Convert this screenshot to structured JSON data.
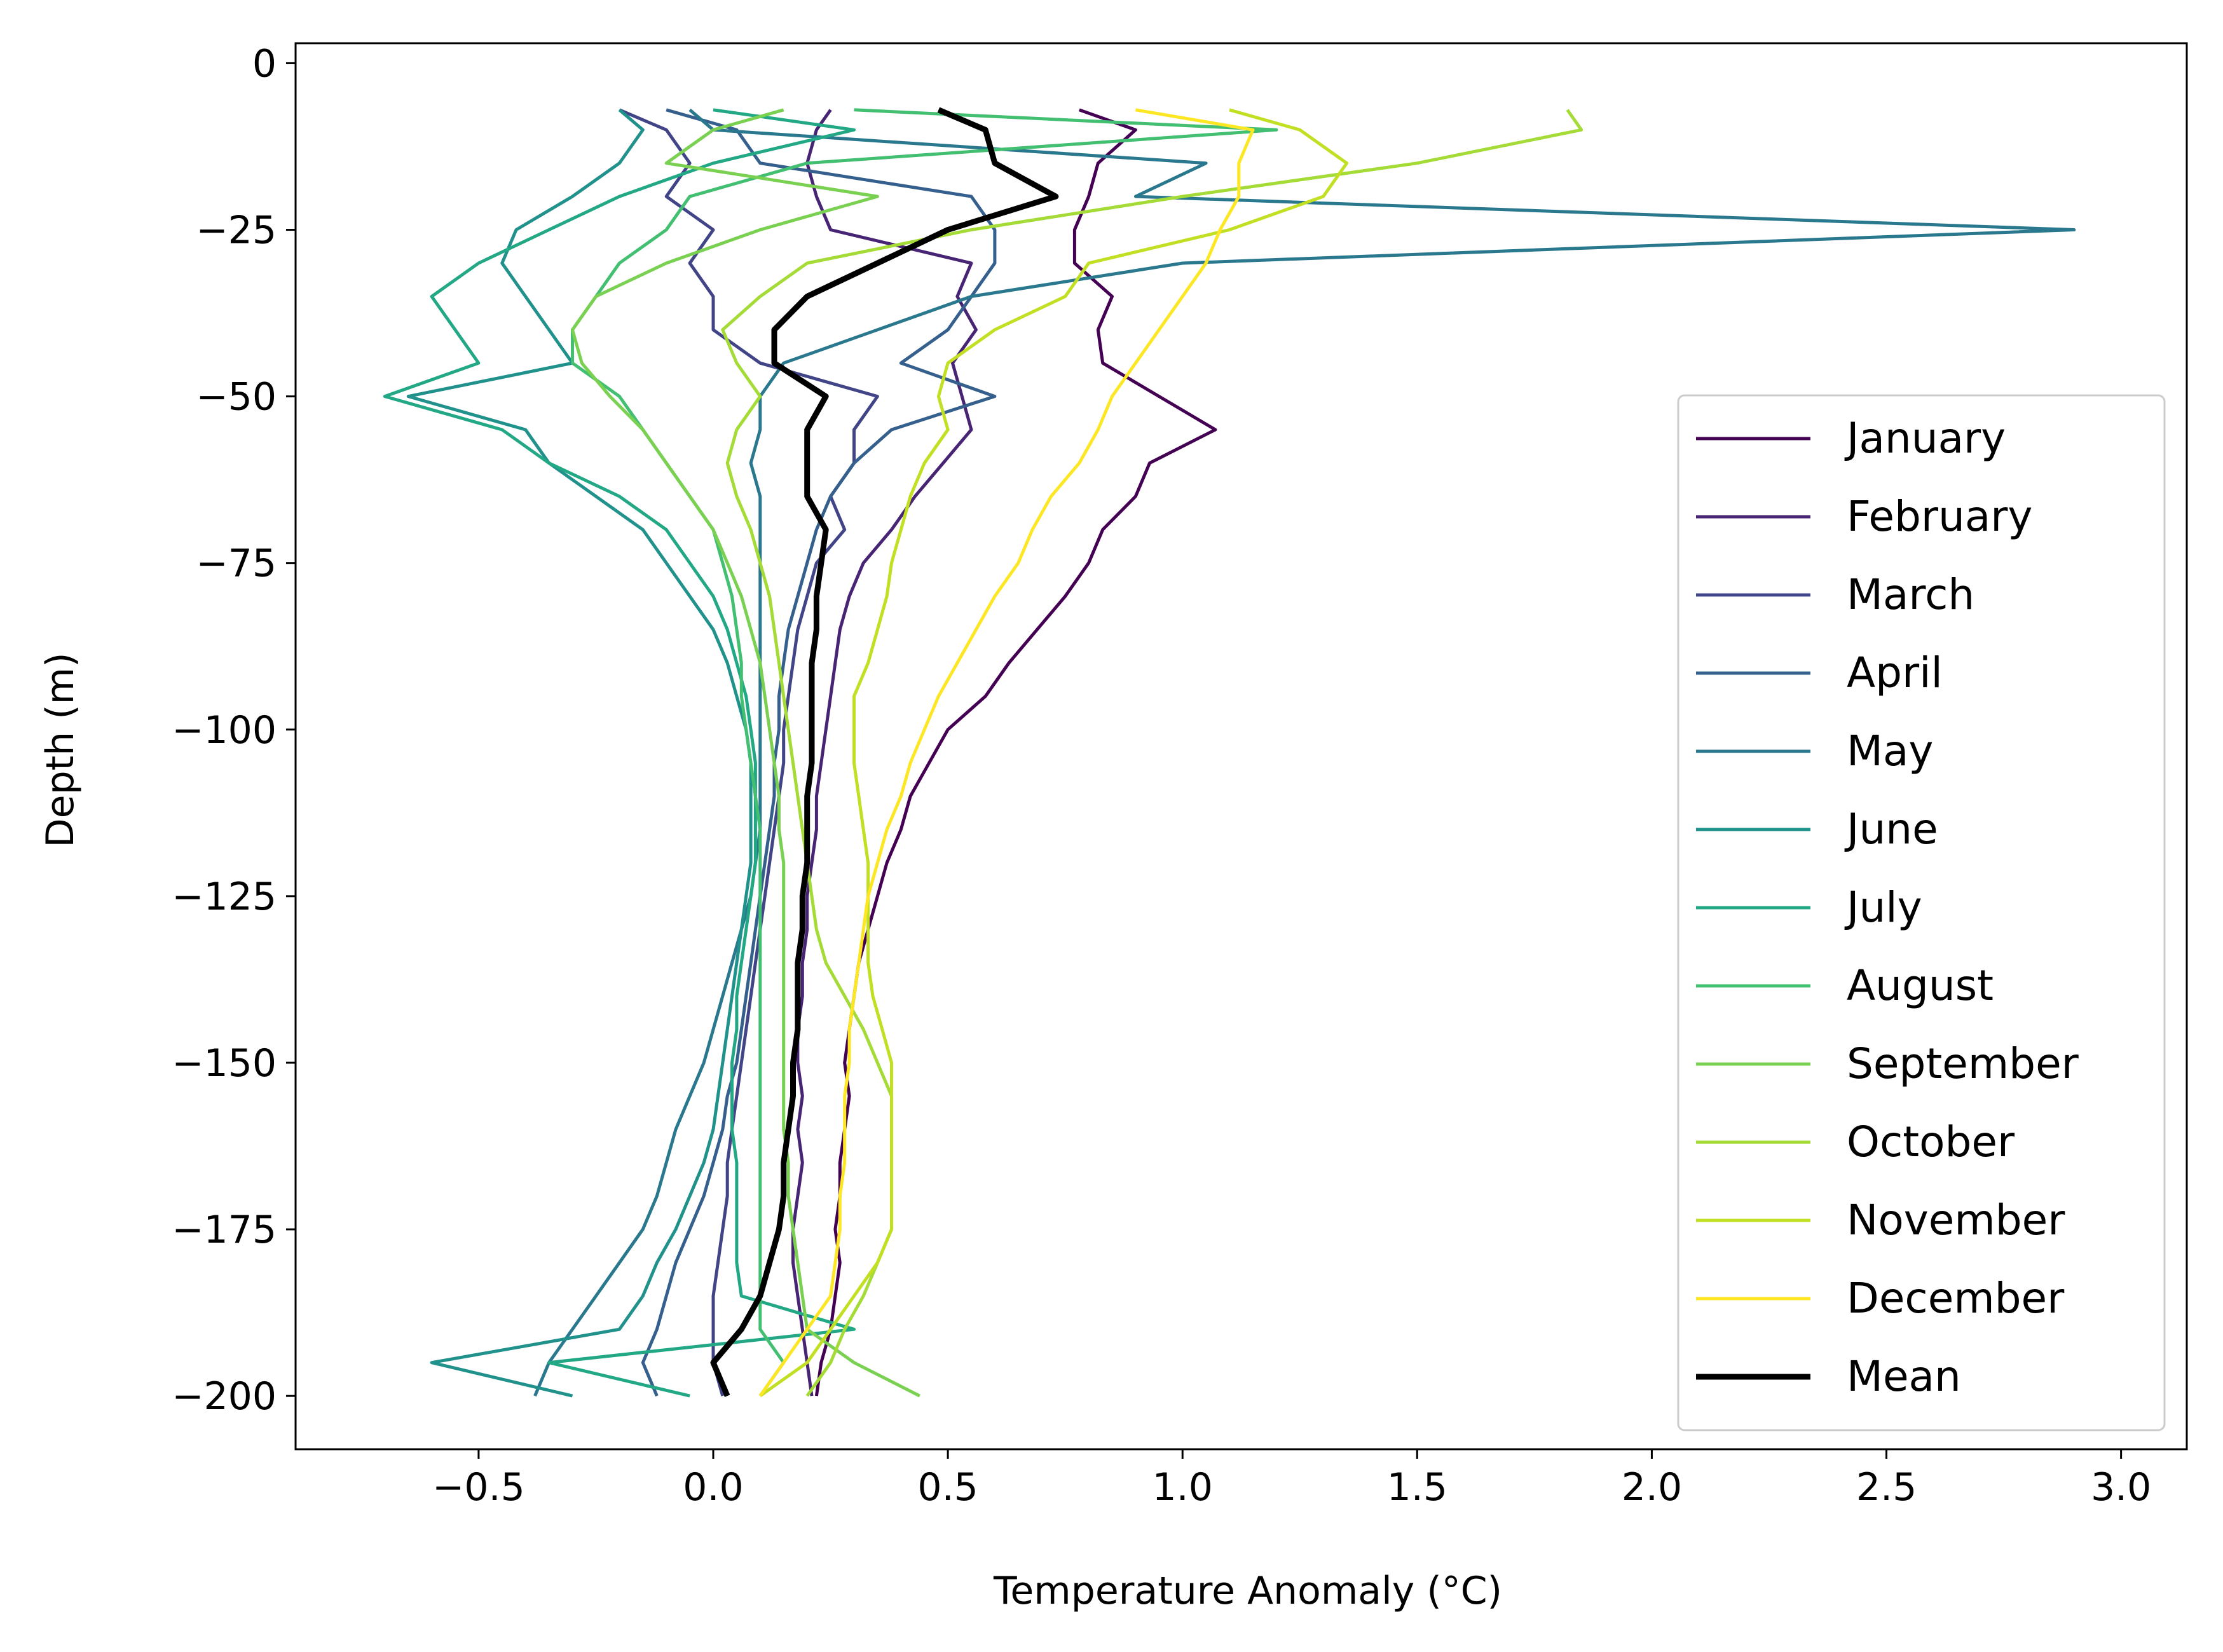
{
  "chart_data": {
    "type": "line",
    "title": "",
    "xlabel": "Temperature Anomaly (°C)",
    "ylabel": "Depth (m)",
    "xlim": [
      -0.89,
      3.14
    ],
    "ylim": [
      -208,
      3
    ],
    "xticks": [
      -0.5,
      0.0,
      0.5,
      1.0,
      1.5,
      2.0,
      2.5,
      3.0
    ],
    "xtick_labels": [
      "−0.5",
      "0.0",
      "0.5",
      "1.0",
      "1.5",
      "2.0",
      "2.5",
      "3.0"
    ],
    "yticks": [
      0,
      -25,
      -50,
      -75,
      -100,
      -125,
      -150,
      -175,
      -200
    ],
    "ytick_labels": [
      "0",
      "−25",
      "−50",
      "−75",
      "−100",
      "−125",
      "−150",
      "−175",
      "−200"
    ],
    "grid": false,
    "legend_position": "lower right",
    "depth": [
      -7,
      -10,
      -15,
      -20,
      -25,
      -30,
      -35,
      -40,
      -45,
      -50,
      -55,
      -60,
      -65,
      -70,
      -75,
      -80,
      -85,
      -90,
      -95,
      -100,
      -105,
      -110,
      -115,
      -120,
      -125,
      -130,
      -135,
      -140,
      -145,
      -150,
      -155,
      -160,
      -165,
      -170,
      -175,
      -180,
      -185,
      -190,
      -195,
      -200
    ],
    "series": [
      {
        "name": "January",
        "color": "#440154",
        "x": [
          0.78,
          0.9,
          0.82,
          0.8,
          0.77,
          0.77,
          0.85,
          0.82,
          0.83,
          0.95,
          1.07,
          0.93,
          0.9,
          0.83,
          0.8,
          0.75,
          0.69,
          0.63,
          0.58,
          0.5,
          0.46,
          0.42,
          0.4,
          0.37,
          0.35,
          0.33,
          0.31,
          0.3,
          0.29,
          0.28,
          0.29,
          0.28,
          0.27,
          0.27,
          0.26,
          0.27,
          0.26,
          0.25,
          0.23,
          0.22
        ],
        "width": 2
      },
      {
        "name": "February",
        "color": "#482475",
        "x": [
          0.25,
          0.22,
          0.2,
          0.22,
          0.25,
          0.55,
          0.52,
          0.56,
          0.51,
          0.53,
          0.55,
          0.49,
          0.43,
          0.38,
          0.32,
          0.29,
          0.27,
          0.26,
          0.25,
          0.24,
          0.23,
          0.22,
          0.22,
          0.21,
          0.2,
          0.2,
          0.19,
          0.19,
          0.18,
          0.18,
          0.19,
          0.18,
          0.19,
          0.18,
          0.17,
          0.17,
          0.18,
          0.19,
          0.2,
          0.21
        ],
        "width": 2
      },
      {
        "name": "March",
        "color": "#414487",
        "x": [
          -0.2,
          -0.1,
          -0.05,
          -0.1,
          0.0,
          -0.05,
          0.0,
          0.0,
          0.1,
          0.35,
          0.3,
          0.3,
          0.25,
          0.28,
          0.22,
          0.2,
          0.18,
          0.17,
          0.16,
          0.15,
          0.15,
          0.14,
          0.13,
          0.12,
          0.11,
          0.1,
          0.09,
          0.08,
          0.07,
          0.06,
          0.05,
          0.04,
          0.03,
          0.03,
          0.02,
          0.01,
          0.0,
          0.0,
          0.0,
          0.02
        ],
        "width": 2
      },
      {
        "name": "April",
        "color": "#355f8d",
        "x": [
          -0.1,
          0.05,
          0.1,
          0.55,
          0.6,
          0.6,
          0.55,
          0.5,
          0.4,
          0.6,
          0.38,
          0.3,
          0.25,
          0.22,
          0.2,
          0.18,
          0.16,
          0.15,
          0.14,
          0.14,
          0.13,
          0.13,
          0.12,
          0.11,
          0.1,
          0.09,
          0.08,
          0.07,
          0.06,
          0.05,
          0.03,
          0.02,
          0.0,
          -0.02,
          -0.05,
          -0.08,
          -0.1,
          -0.12,
          -0.15,
          -0.12
        ],
        "width": 2
      },
      {
        "name": "May",
        "color": "#2a788e",
        "x": [
          -0.05,
          0.0,
          1.05,
          0.9,
          2.9,
          1.0,
          0.55,
          0.35,
          0.15,
          0.1,
          0.1,
          0.08,
          0.1,
          0.1,
          0.1,
          0.1,
          0.1,
          0.1,
          0.1,
          0.1,
          0.1,
          0.1,
          0.1,
          0.09,
          0.08,
          0.06,
          0.04,
          0.02,
          0.0,
          -0.02,
          -0.05,
          -0.08,
          -0.1,
          -0.12,
          -0.15,
          -0.2,
          -0.25,
          -0.3,
          -0.35,
          -0.38
        ],
        "width": 2
      },
      {
        "name": "June",
        "color": "#21918c",
        "x": [
          -0.2,
          -0.15,
          -0.2,
          -0.3,
          -0.42,
          -0.45,
          -0.4,
          -0.35,
          -0.3,
          -0.65,
          -0.4,
          -0.35,
          -0.25,
          -0.15,
          -0.1,
          -0.05,
          0.0,
          0.03,
          0.05,
          0.07,
          0.08,
          0.08,
          0.08,
          0.08,
          0.07,
          0.06,
          0.05,
          0.04,
          0.03,
          0.02,
          0.01,
          0.0,
          -0.02,
          -0.05,
          -0.08,
          -0.12,
          -0.15,
          -0.2,
          -0.6,
          -0.3
        ],
        "width": 2
      },
      {
        "name": "July",
        "color": "#22a884",
        "x": [
          0.0,
          0.3,
          0.0,
          -0.2,
          -0.35,
          -0.5,
          -0.6,
          -0.55,
          -0.5,
          -0.7,
          -0.45,
          -0.35,
          -0.2,
          -0.1,
          -0.05,
          0.0,
          0.03,
          0.05,
          0.07,
          0.08,
          0.09,
          0.09,
          0.09,
          0.09,
          0.08,
          0.07,
          0.06,
          0.05,
          0.05,
          0.04,
          0.04,
          0.04,
          0.05,
          0.05,
          0.05,
          0.05,
          0.06,
          0.3,
          -0.35,
          -0.05
        ],
        "width": 2
      },
      {
        "name": "August",
        "color": "#43bf71",
        "x": [
          0.3,
          1.2,
          0.2,
          -0.05,
          -0.1,
          -0.2,
          -0.25,
          -0.3,
          -0.3,
          -0.2,
          -0.15,
          -0.1,
          -0.05,
          0.0,
          0.02,
          0.04,
          0.05,
          0.06,
          0.06,
          0.07,
          0.08,
          0.09,
          0.1,
          0.1,
          0.1,
          0.1,
          0.1,
          0.1,
          0.1,
          0.1,
          0.1,
          0.1,
          0.1,
          0.1,
          0.1,
          0.1,
          0.1,
          0.1,
          0.15,
          0.1
        ],
        "width": 2
      },
      {
        "name": "September",
        "color": "#7ad151",
        "x": [
          0.15,
          0.0,
          -0.1,
          0.35,
          0.1,
          -0.1,
          -0.25,
          -0.3,
          -0.28,
          -0.22,
          -0.15,
          -0.1,
          -0.05,
          0.0,
          0.03,
          0.06,
          0.08,
          0.1,
          0.11,
          0.12,
          0.13,
          0.14,
          0.14,
          0.15,
          0.15,
          0.15,
          0.15,
          0.15,
          0.15,
          0.15,
          0.15,
          0.15,
          0.16,
          0.16,
          0.17,
          0.18,
          0.19,
          0.2,
          0.3,
          0.44
        ],
        "width": 2
      },
      {
        "name": "October",
        "color": "#a5db36",
        "x": [
          1.82,
          1.85,
          1.5,
          1.0,
          0.55,
          0.2,
          0.1,
          0.02,
          0.05,
          0.1,
          0.05,
          0.03,
          0.05,
          0.08,
          0.1,
          0.12,
          0.13,
          0.14,
          0.15,
          0.16,
          0.17,
          0.18,
          0.19,
          0.2,
          0.21,
          0.22,
          0.24,
          0.28,
          0.32,
          0.35,
          0.38,
          0.38,
          0.38,
          0.38,
          0.38,
          0.35,
          0.32,
          0.28,
          0.25,
          0.2
        ],
        "width": 2
      },
      {
        "name": "November",
        "color": "#c2df23",
        "x": [
          1.1,
          1.25,
          1.35,
          1.3,
          1.1,
          0.8,
          0.75,
          0.6,
          0.5,
          0.48,
          0.5,
          0.45,
          0.42,
          0.4,
          0.38,
          0.37,
          0.35,
          0.33,
          0.3,
          0.3,
          0.3,
          0.31,
          0.32,
          0.33,
          0.33,
          0.33,
          0.33,
          0.34,
          0.36,
          0.38,
          0.38,
          0.38,
          0.38,
          0.38,
          0.38,
          0.35,
          0.3,
          0.25,
          0.2,
          0.1
        ],
        "width": 2
      },
      {
        "name": "December",
        "color": "#fde725",
        "x": [
          0.9,
          1.15,
          1.12,
          1.12,
          1.08,
          1.05,
          1.0,
          0.95,
          0.9,
          0.85,
          0.82,
          0.78,
          0.72,
          0.68,
          0.65,
          0.6,
          0.56,
          0.52,
          0.48,
          0.45,
          0.42,
          0.4,
          0.37,
          0.35,
          0.33,
          0.32,
          0.31,
          0.3,
          0.29,
          0.29,
          0.28,
          0.28,
          0.28,
          0.27,
          0.27,
          0.26,
          0.25,
          0.2,
          0.15,
          0.1
        ],
        "width": 2
      },
      {
        "name": "Mean",
        "color": "#000000",
        "x": [
          0.48,
          0.58,
          0.6,
          0.73,
          0.5,
          0.35,
          0.2,
          0.13,
          0.13,
          0.24,
          0.2,
          0.2,
          0.2,
          0.24,
          0.23,
          0.22,
          0.22,
          0.21,
          0.21,
          0.21,
          0.21,
          0.2,
          0.2,
          0.2,
          0.19,
          0.19,
          0.18,
          0.18,
          0.18,
          0.17,
          0.17,
          0.16,
          0.15,
          0.15,
          0.14,
          0.12,
          0.1,
          0.06,
          0.0,
          0.03
        ],
        "width": 3
      }
    ]
  }
}
